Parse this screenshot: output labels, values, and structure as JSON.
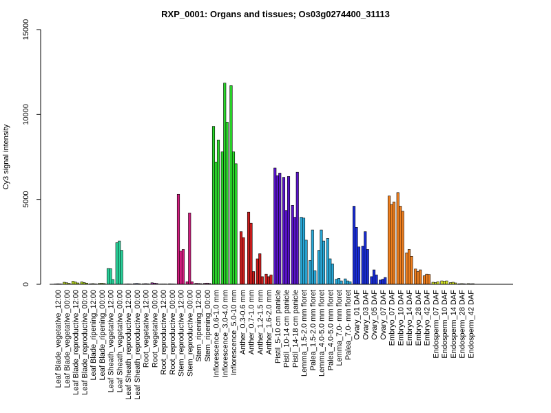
{
  "chart_data": {
    "type": "bar",
    "title": "RXP_0001: Organs and tissues; Os03g0274400_31113",
    "xlabel": "",
    "ylabel": "Cy3 signal intensity",
    "ylim": [
      0,
      15000
    ],
    "yticks": [
      0,
      5000,
      10000,
      15000
    ],
    "grid": false,
    "legend": "none",
    "categories": [
      "Leaf Blade_vegetative_12:00",
      "Leaf Blade_vegetative_00:00",
      "Leaf Blade_reproductive_12:00",
      "Leaf Blade_reproductive_00:00",
      "Leaf Blade_ripening_12:00",
      "Leaf Blade_ripening_00:00",
      "Leaf Sheath_vegetative_12:00",
      "Leaf Sheath_vegetative_00:00",
      "Leaf Sheath_reproductive_12:00",
      "Leaf Sheath_reproductive_00:00",
      "Root_vegetative_12:00",
      "Root_vegetative_00:00",
      "Root_reproductive_12:00",
      "Root_reproductive_00:00",
      "Stem_reproductive_12:00",
      "Stem_reproductive_00:00",
      "Stem_ripening_12:00",
      "Stem_ripening_00:00",
      "Inflorescence_0.6-1.0 mm",
      "Inflorescence_3.0-4.0 mm",
      "Inflorescence_5.0-10 mm",
      "Anther_0.3-0.6 mm",
      "Anther_0.7-1.0 mm",
      "Anther_1.2-1.5 mm",
      "Anther_1.6-2.0 mm",
      "Pistil_5-10 cm panicle",
      "Pistil_10-14 cm panicle",
      "Pistil_14-18 cm panicle",
      "Lemma_1.5-2.0 mm floret",
      "Palea_1.5-2.0 mm floret",
      "Lemma_4.0-5.0 mm floret",
      "Palea_4.0-5.0 mm floret",
      "Lemma_7.0- mm floret",
      "Palea_7.0- mm floret",
      "Ovary_01 DAF",
      "Ovary_03 DAF",
      "Ovary_05 DAF",
      "Ovary_07 DAF",
      "Embryo_07 DAF",
      "Embryo_10 DAF",
      "Embryo_14 DAF",
      "Embryo_28 DAF",
      "Embryo_42 DAF",
      "Endosperm_07 DAF",
      "Endosperm_10 DAF",
      "Endosperm_14 DAF",
      "Endosperm_28 DAF",
      "Endosperm_42 DAF"
    ],
    "groups": [
      {
        "color": "#d2e832",
        "values": [
          20,
          30,
          25
        ]
      },
      {
        "color": "#c4e02c",
        "values": [
          120,
          90,
          60
        ]
      },
      {
        "color": "#b8d826",
        "values": [
          180,
          130,
          80
        ]
      },
      {
        "color": "#aad022",
        "values": [
          140,
          100,
          70
        ]
      },
      {
        "color": "#9ccc1c",
        "values": [
          30,
          40,
          25
        ]
      },
      {
        "color": "#8cc418",
        "values": [
          50,
          60,
          45
        ]
      },
      {
        "color": "#2ad49c",
        "values": [
          930,
          920,
          280
        ]
      },
      {
        "color": "#2ad49c",
        "values": [
          2450,
          2550,
          2000
        ]
      },
      {
        "color": "#3c78c8",
        "values": [
          20,
          25,
          20
        ]
      },
      {
        "color": "#4a68c0",
        "values": [
          40,
          50,
          35
        ]
      },
      {
        "color": "#8a3ab8",
        "values": [
          30,
          40,
          30
        ]
      },
      {
        "color": "#a43aa8",
        "values": [
          90,
          70,
          50
        ]
      },
      {
        "color": "#b83494",
        "values": [
          20,
          20,
          20
        ]
      },
      {
        "color": "#c83488",
        "values": [
          30,
          25,
          20
        ]
      },
      {
        "color": "#d41c80",
        "values": [
          5300,
          1950,
          2050
        ]
      },
      {
        "color": "#d41c80",
        "values": [
          150,
          4200,
          150
        ]
      },
      {
        "color": "#b43c88",
        "values": [
          60,
          50,
          40
        ]
      },
      {
        "color": "#a44890",
        "values": [
          60,
          70,
          50
        ]
      },
      {
        "color": "#2bd82b",
        "values": [
          9300,
          7200,
          8500
        ]
      },
      {
        "color": "#2bd82b",
        "values": [
          7800,
          11850,
          9550
        ]
      },
      {
        "color": "#2bd82b",
        "values": [
          11700,
          7800,
          7100
        ]
      },
      {
        "color": "#cc1c1c",
        "values": [
          3100,
          2750
        ]
      },
      {
        "color": "#cc1c1c",
        "values": [
          4250,
          3600,
          750
        ]
      },
      {
        "color": "#cc1c1c",
        "values": [
          1500,
          1800,
          450
        ]
      },
      {
        "color": "#cc1c1c",
        "values": [
          600,
          450,
          550
        ]
      },
      {
        "color": "#5a14cc",
        "values": [
          6850,
          6400,
          6550
        ]
      },
      {
        "color": "#5a14cc",
        "values": [
          6300,
          4350,
          6350
        ]
      },
      {
        "color": "#5a14cc",
        "values": [
          4650,
          3950,
          6600
        ]
      },
      {
        "color": "#28a8d8",
        "values": [
          3950,
          3900,
          2600
        ]
      },
      {
        "color": "#28a8d8",
        "values": [
          1400,
          3200,
          800
        ]
      },
      {
        "color": "#28a8d8",
        "values": [
          2000,
          3200,
          2550
        ]
      },
      {
        "color": "#28a8d8",
        "values": [
          2700,
          1500,
          1200
        ]
      },
      {
        "color": "#28a8d8",
        "values": [
          300,
          350,
          200
        ]
      },
      {
        "color": "#28a8d8",
        "values": [
          320,
          200,
          150
        ]
      },
      {
        "color": "#1a2ed8",
        "values": [
          4600,
          3350,
          2200
        ]
      },
      {
        "color": "#1a2ed8",
        "values": [
          2250,
          3100,
          2050
        ]
      },
      {
        "color": "#1a2ed8",
        "values": [
          450,
          850,
          550
        ]
      },
      {
        "color": "#1a2ed8",
        "values": [
          250,
          300,
          400
        ]
      },
      {
        "color": "#f08020",
        "values": [
          5200,
          4700,
          4850
        ]
      },
      {
        "color": "#f08020",
        "values": [
          5400,
          4600,
          4300
        ]
      },
      {
        "color": "#f08020",
        "values": [
          1850,
          2050,
          1650
        ]
      },
      {
        "color": "#f08020",
        "values": [
          900,
          750,
          850
        ]
      },
      {
        "color": "#f08020",
        "values": [
          500,
          600,
          580
        ]
      },
      {
        "color": "#d8e82a",
        "values": [
          120,
          100,
          150
        ]
      },
      {
        "color": "#d8e82a",
        "values": [
          200,
          180,
          200
        ]
      },
      {
        "color": "#d8e82a",
        "values": [
          100,
          120,
          80
        ]
      },
      {
        "color": "#d8e82a",
        "values": [
          30,
          40,
          30
        ]
      },
      {
        "color": "#d8e82a",
        "values": [
          40,
          30,
          35
        ]
      }
    ]
  }
}
